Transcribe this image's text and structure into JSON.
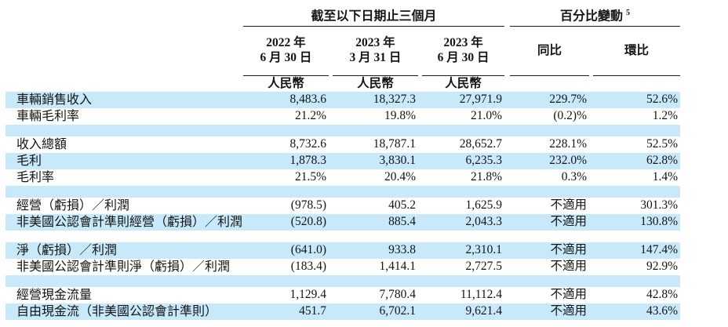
{
  "colors": {
    "row_highlight": "#c7e9f9",
    "rule": "#1a1a1a",
    "text": "#141414"
  },
  "table": {
    "group_headers": [
      {
        "label": "截至以下日期止三個月",
        "note": ""
      },
      {
        "label": "百分比變動",
        "note": "5"
      }
    ],
    "column_headers": [
      {
        "line1": "2022 年",
        "line2": "6 月 30 日"
      },
      {
        "line1": "2023 年",
        "line2": "3 月 31 日"
      },
      {
        "line1": "2023 年",
        "line2": "6 月 30 日"
      },
      {
        "label": "同比"
      },
      {
        "label": "環比"
      }
    ],
    "currency_label": "人民幣",
    "rows": [
      {
        "spacer": false,
        "shaded": true,
        "label": "車輛銷售收入",
        "values": [
          "8,483.6",
          "18,327.3",
          "27,971.9",
          "229.7%",
          "52.6%"
        ]
      },
      {
        "spacer": false,
        "shaded": false,
        "label": "車輛毛利率",
        "values": [
          "21.2%",
          "19.8%",
          "21.0%",
          "(0.2)%",
          "1.2%"
        ]
      },
      {
        "spacer": true,
        "shaded": true,
        "label": "",
        "values": [
          "",
          "",
          "",
          "",
          ""
        ]
      },
      {
        "spacer": false,
        "shaded": false,
        "label": "收入總額",
        "values": [
          "8,732.6",
          "18,787.1",
          "28,652.7",
          "228.1%",
          "52.5%"
        ]
      },
      {
        "spacer": false,
        "shaded": true,
        "label": "毛利",
        "values": [
          "1,878.3",
          "3,830.1",
          "6,235.3",
          "232.0%",
          "62.8%"
        ]
      },
      {
        "spacer": false,
        "shaded": false,
        "label": "毛利率",
        "values": [
          "21.5%",
          "20.4%",
          "21.8%",
          "0.3%",
          "1.4%"
        ]
      },
      {
        "spacer": true,
        "shaded": true,
        "label": "",
        "values": [
          "",
          "",
          "",
          "",
          ""
        ]
      },
      {
        "spacer": false,
        "shaded": false,
        "label": "經營（虧損）／利潤",
        "values": [
          "(978.5)",
          "405.2",
          "1,625.9",
          "不適用",
          "301.3%"
        ]
      },
      {
        "spacer": false,
        "shaded": true,
        "label": "非美國公認會計準則經營（虧損）／利潤",
        "values": [
          "(520.8)",
          "885.4",
          "2,043.3",
          "不適用",
          "130.8%"
        ]
      },
      {
        "spacer": true,
        "shaded": false,
        "label": "",
        "values": [
          "",
          "",
          "",
          "",
          ""
        ]
      },
      {
        "spacer": false,
        "shaded": true,
        "label": "淨（虧損）／利潤",
        "values": [
          "(641.0)",
          "933.8",
          "2,310.1",
          "不適用",
          "147.4%"
        ]
      },
      {
        "spacer": false,
        "shaded": false,
        "label": "非美國公認會計準則淨（虧損）／利潤",
        "values": [
          "(183.4)",
          "1,414.1",
          "2,727.5",
          "不適用",
          "92.9%"
        ]
      },
      {
        "spacer": true,
        "shaded": true,
        "label": "",
        "values": [
          "",
          "",
          "",
          "",
          ""
        ]
      },
      {
        "spacer": false,
        "shaded": false,
        "label": "經營現金流量",
        "values": [
          "1,129.4",
          "7,780.4",
          "11,112.4",
          "不適用",
          "42.8%"
        ]
      },
      {
        "spacer": false,
        "shaded": true,
        "label": "自由現金流（非美國公認會計準則）",
        "values": [
          "451.7",
          "6,702.1",
          "9,621.4",
          "不適用",
          "43.6%"
        ]
      }
    ]
  }
}
